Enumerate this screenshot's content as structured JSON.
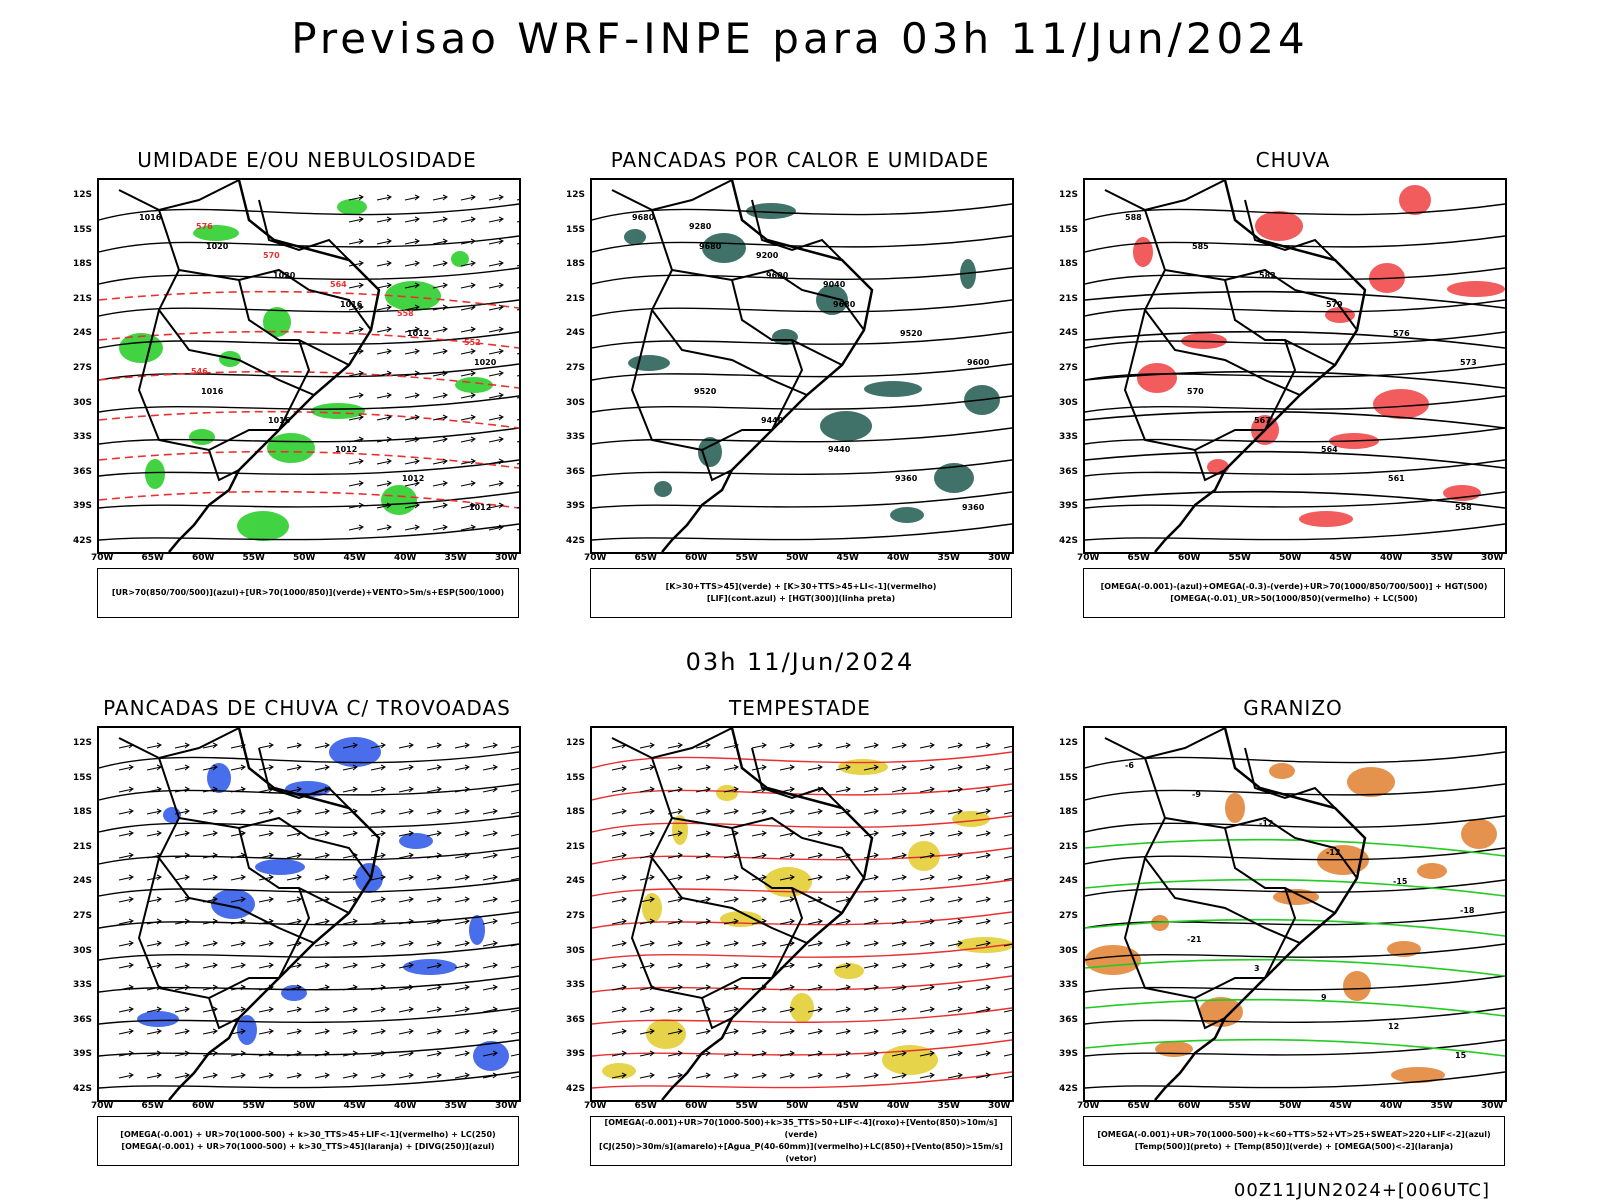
{
  "header": {
    "title": "Previsao WRF-INPE  para 03h 11/Jun/2024"
  },
  "middle": {
    "date": "03h 11/Jun/2024"
  },
  "footer": {
    "run": "00Z11JUN2024+[006UTC]"
  },
  "axes": {
    "lat": [
      "12S",
      "15S",
      "18S",
      "21S",
      "24S",
      "27S",
      "30S",
      "33S",
      "36S",
      "39S",
      "42S"
    ],
    "lon": [
      "70W",
      "65W",
      "60W",
      "55W",
      "50W",
      "45W",
      "40W",
      "35W",
      "30W"
    ]
  },
  "panels": [
    {
      "title": "UMIDADE E/OU NEBULOSIDADE",
      "legend": [
        "[UR>70(850/700/500)](azul)+[UR>70(1000/850)](verde)+VENTO>5m/s+ESP(500/1000)"
      ],
      "contour_labels": [
        "1016",
        "1020",
        "1020",
        "1016",
        "1012",
        "1020",
        "1016",
        "1016",
        "1012",
        "1012",
        "1012",
        "576",
        "570",
        "564",
        "558",
        "552",
        "546"
      ],
      "colors": {
        "contour": "#000000",
        "secondary": "#e83030",
        "fill": "#22cc22"
      }
    },
    {
      "title": "PANCADAS POR CALOR E UMIDADE",
      "legend": [
        "[K>30+TTS>45](verde) + [K>30+TTS>45+LI<-1](vermelho)",
        "[LIF](cont.azul) + [HGT(300)](linha preta)"
      ],
      "contour_labels": [
        "9680",
        "9680",
        "9600",
        "9680",
        "9520",
        "9600",
        "9520",
        "9440",
        "9440",
        "9360",
        "9360",
        "9280",
        "9200",
        "9040"
      ],
      "colors": {
        "contour": "#000000",
        "secondary": "#2244ee",
        "fill": "#1f5a50"
      }
    },
    {
      "title": "CHUVA",
      "legend": [
        "[OMEGA(-0.001)-(azul)+OMEGA(-0.3)-(verde)+UR>70(1000/850/700/500)] + HGT(500)",
        "[OMEGA(-0.01)_UR>50(1000/850)(vermelho) + LC(500)"
      ],
      "contour_labels": [
        "588",
        "585",
        "582",
        "579",
        "576",
        "573",
        "570",
        "567",
        "564",
        "561",
        "558"
      ],
      "colors": {
        "contour": "#000000",
        "secondary": "#000000",
        "fill": "#f04040"
      }
    },
    {
      "title": "PANCADAS DE CHUVA C/ TROVOADAS",
      "legend": [
        "[OMEGA(-0.001) + UR>70(1000-500) + k>30_TTS>45+LIF<-1](vermelho) + LC(250)",
        "[OMEGA(-0.001) + UR>70(1000-500) + k>30_TTS>45](laranja) + [DIVG(250)](azul)"
      ],
      "contour_labels": [],
      "colors": {
        "contour": "#000000",
        "secondary": "#2244ee",
        "fill": "#2a55e8"
      }
    },
    {
      "title": "TEMPESTADE",
      "legend": [
        "[OMEGA(-0.001)+UR>70(1000-500)+k>35_TTS>50+LIF<-4](roxo)+[Vento(850)>10m/s](verde)",
        "[CJ(250)>30m/s](amarelo)+[Agua_P(40-60mm)](vermelho)+LC(850)+[Vento(850)>15m/s](vetor)"
      ],
      "contour_labels": [],
      "colors": {
        "contour": "#e83030",
        "secondary": "#000000",
        "fill": "#e2cc2a"
      }
    },
    {
      "title": "GRANIZO",
      "legend": [
        "[OMEGA(-0.001)+UR>70(1000-500)+k<60+TTS>52+VT>25+SWEAT>220+LIF<-2](azul)",
        "[Temp(500)](preto) + [Temp(850)](verde) + [OMEGA(500)<-2](laranja)"
      ],
      "contour_labels": [
        "-6",
        "-9",
        "-12",
        "-12",
        "-15",
        "-18",
        "-21",
        "3",
        "9",
        "12",
        "15"
      ],
      "colors": {
        "contour": "#000000",
        "secondary": "#22cc22",
        "fill": "#e08030"
      }
    }
  ]
}
